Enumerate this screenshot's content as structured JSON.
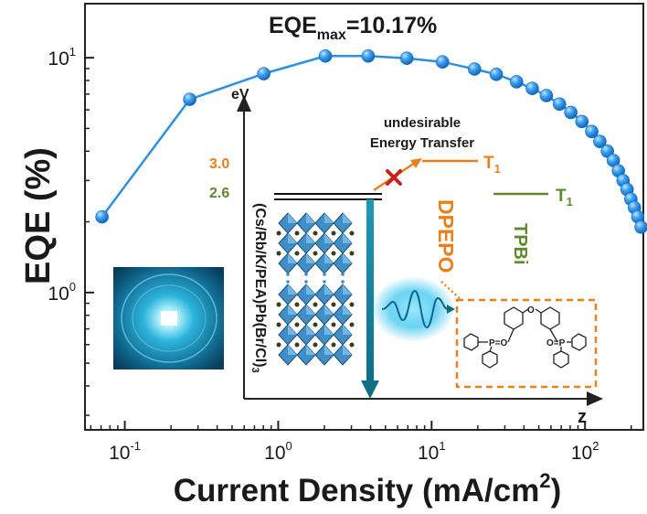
{
  "chart_data": {
    "type": "scatter",
    "title": "EQE",
    "title_sub": "max",
    "title_value": "=10.17%",
    "xlabel_main": "Current Density (mA/cm",
    "xlabel_sup": "2",
    "xlabel_end": ")",
    "ylabel": "EQE (%)",
    "xscale": "log",
    "yscale": "log",
    "xlim": [
      0.055,
      240
    ],
    "ylim": [
      0.26,
      17
    ],
    "xticks": [
      {
        "value": 0.1,
        "base": "10",
        "exp": "-1"
      },
      {
        "value": 1,
        "base": "10",
        "exp": "0"
      },
      {
        "value": 10,
        "base": "10",
        "exp": "1"
      },
      {
        "value": 100,
        "base": "10",
        "exp": "2"
      }
    ],
    "yticks": [
      {
        "value": 1,
        "base": "10",
        "exp": "0"
      },
      {
        "value": 10,
        "base": "10",
        "exp": "1"
      }
    ],
    "series": [
      {
        "name": "EQE",
        "color": "#2f8fe0",
        "x": [
          0.071,
          0.265,
          0.805,
          2.03,
          3.86,
          6.89,
          11.78,
          19.05,
          26.4,
          35.8,
          45.3,
          56.0,
          68.2,
          80.8,
          95.5,
          110.6,
          125.0,
          140.0,
          153.0,
          165.0,
          177.0,
          188.0,
          199.0,
          210.0,
          221.0,
          232.0
        ],
        "y": [
          2.1,
          6.65,
          8.55,
          10.17,
          10.17,
          9.95,
          9.6,
          8.95,
          8.5,
          7.9,
          7.4,
          6.9,
          6.35,
          5.85,
          5.35,
          4.85,
          4.4,
          4.0,
          3.65,
          3.3,
          3.0,
          2.75,
          2.5,
          2.3,
          2.1,
          1.9
        ]
      }
    ]
  },
  "inset": {
    "y_axis_label": "eV",
    "z_axis_label": "z",
    "energy_levels": [
      {
        "label": "3.0",
        "color": "#e8801c"
      },
      {
        "label": "2.6",
        "color": "#5f8a2a"
      }
    ],
    "transfer_line1": "undesirable",
    "transfer_line2": "Energy Transfer",
    "t1_main": "T",
    "t1_sub": "1",
    "perovskite_label": "(Cs/Rb/K/PEA)Pb(Br/Cl)",
    "perovskite_sub": "3",
    "dpepo_label": "DPEPO",
    "tpbi_label": "TPBi",
    "p_label_1": "P=O",
    "p_label_2": "O=P",
    "ether_o": "O"
  },
  "colors": {
    "series": "#2f8fe0",
    "orange": "#e8801c",
    "green": "#5f8a2a",
    "cross": "#cc1f1f",
    "emission": "#1e8fa6"
  }
}
